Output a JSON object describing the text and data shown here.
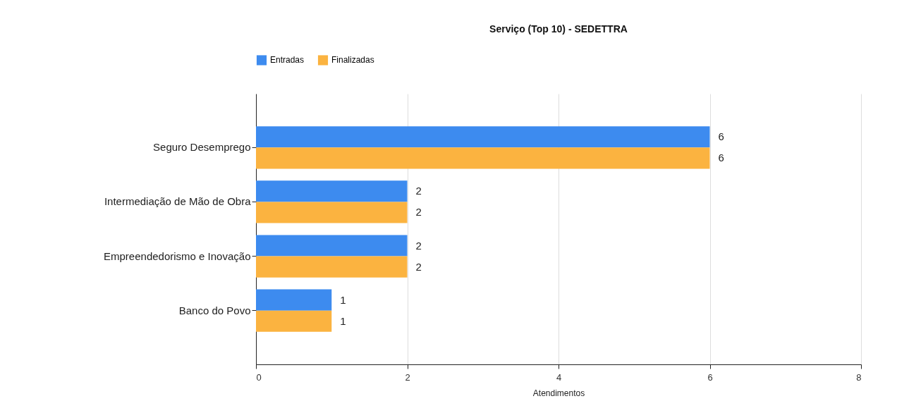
{
  "chart_data": {
    "type": "bar",
    "title": "Serviço (Top 10) - SEDETTRA",
    "orientation": "horizontal",
    "categories": [
      "Seguro Desemprego",
      "Intermediação de Mão de Obra",
      "Empreendedorismo e Inovação",
      "Banco do Povo"
    ],
    "series": [
      {
        "name": "Entradas",
        "color": "#3d8bef",
        "values": [
          6,
          2,
          2,
          1
        ]
      },
      {
        "name": "Finalizadas",
        "color": "#fbb340",
        "values": [
          6,
          2,
          2,
          1
        ]
      }
    ],
    "xlabel": "Atendimentos",
    "xlim": [
      0,
      8
    ],
    "xticks": [
      0,
      2,
      4,
      6,
      8
    ],
    "grid": "x",
    "legend": "top",
    "data_labels": true
  }
}
